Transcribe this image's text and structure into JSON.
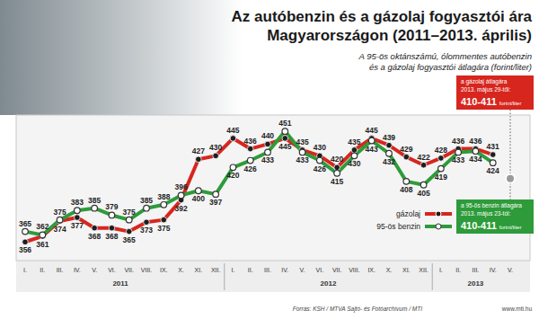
{
  "chart_data": {
    "type": "line",
    "title": [
      "Az autóbenzin és a gázolaj fogyasztói ára",
      "Magyarországon (2011–2013. április)"
    ],
    "subtitle": [
      "A 95-ös oktánszámú, ólommentes autóbenzin",
      "és a gázolaj fogyasztói átlagára (forint/liter)"
    ],
    "categories": [
      "I.",
      "II.",
      "III.",
      "IV.",
      "V.",
      "VI.",
      "VII.",
      "VIII.",
      "IX.",
      "X.",
      "XI.",
      "XII.",
      "I.",
      "II.",
      "III.",
      "IV.",
      "V.",
      "VI.",
      "VII.",
      "VIII.",
      "IX.",
      "X.",
      "XI.",
      "XII.",
      "I.",
      "II.",
      "III.",
      "IV.",
      "V."
    ],
    "x_groups": [
      {
        "label": "2011",
        "count": 12
      },
      {
        "label": "2012",
        "count": 12
      },
      {
        "label": "2013",
        "count": 5
      }
    ],
    "series": [
      {
        "name": "gázolaj",
        "color": "#d7261e",
        "marker": "filled-circle",
        "values": [
          356,
          361,
          374,
          377,
          368,
          368,
          365,
          373,
          375,
          392,
          427,
          430,
          445,
          436,
          440,
          445,
          435,
          430,
          420,
          435,
          445,
          439,
          429,
          422,
          428,
          436,
          436,
          431,
          null
        ]
      },
      {
        "name": "95-ös benzin",
        "color": "#2e9b3a",
        "marker": "open-circle",
        "values": [
          365,
          362,
          375,
          383,
          385,
          379,
          375,
          385,
          388,
          396,
          400,
          397,
          420,
          426,
          433,
          451,
          433,
          426,
          415,
          430,
          443,
          432,
          408,
          405,
          419,
          433,
          434,
          424,
          null
        ]
      }
    ],
    "ylim": [
      340,
      465
    ],
    "yticks": [],
    "tick_labels": "x",
    "grid": false,
    "data_labels": true,
    "legend": "right",
    "annotations": [
      {
        "lines": [
          "a gázolaj átlagára",
          "2013. május 29-től:"
        ],
        "value_label": "410-411",
        "unit": "forint/liter",
        "color": "#d7261e"
      },
      {
        "lines": [
          "a 95-ös benzin átlagára",
          "2013. május 23-tól:"
        ],
        "value_label": "410-411",
        "unit": "forint/liter",
        "color": "#2e9b3a"
      }
    ],
    "annotation_point": {
      "category_index": 28,
      "value": 410.5
    },
    "source": "Forrás: KSH / MTVA Sajtó- és Fotóarchívum / MTI",
    "website": "www.mti.hu"
  }
}
